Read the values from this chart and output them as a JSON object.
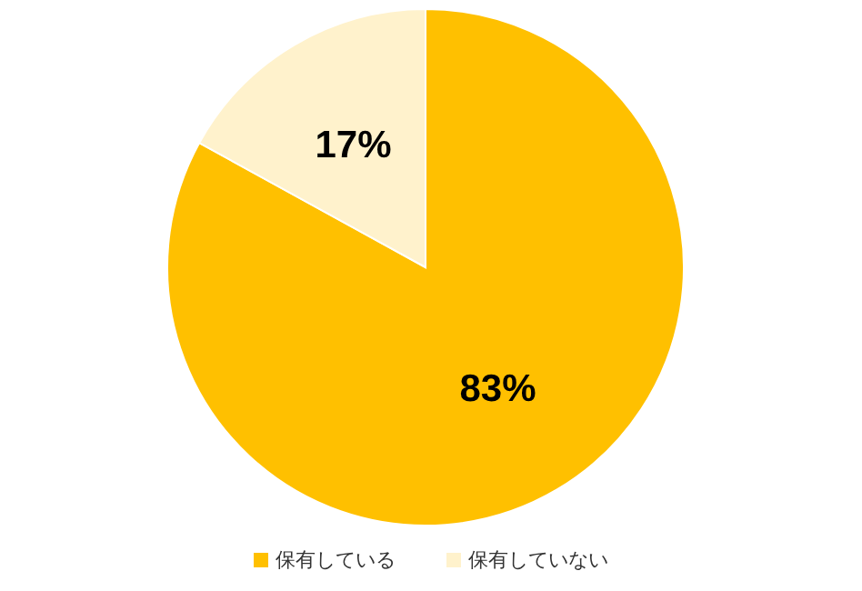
{
  "chart_data": {
    "type": "pie",
    "categories": [
      "保有している",
      "保有していない"
    ],
    "values": [
      83,
      17
    ],
    "colors": [
      "#ffc000",
      "#fff2cc"
    ],
    "value_labels": [
      "83%",
      "17%"
    ],
    "legend": "bottom"
  }
}
